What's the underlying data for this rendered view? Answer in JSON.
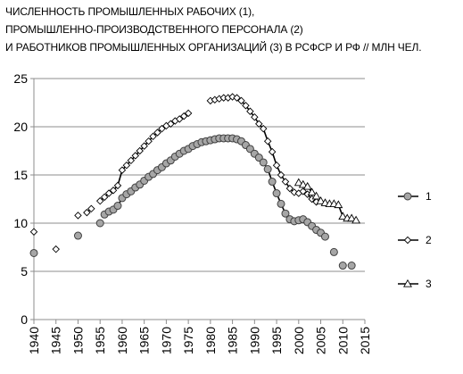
{
  "chart_data": {
    "type": "line",
    "title_lines": [
      "ЧИСЛЕННОСТЬ ПРОМЫШЛЕННЫХ РАБОЧИХ (1),",
      "ПРОМЫШЛЕННО-ПРОИЗВОДСТВЕННОГО ПЕРСОНАЛА (2)",
      "И РАБОТНИКОВ ПРОМЫШЛЕННЫХ ОРГАНИЗАЦИЙ (3) В РСФСР И РФ // МЛН ЧЕЛ."
    ],
    "xlim": [
      1940,
      2015
    ],
    "ylim": [
      0,
      25
    ],
    "x_ticks": [
      "1940",
      "1945",
      "1950",
      "1955",
      "1960",
      "1965",
      "1970",
      "1975",
      "1980",
      "1985",
      "1990",
      "1995",
      "2000",
      "2005",
      "2010",
      "2015"
    ],
    "y_ticks": [
      "0",
      "5",
      "10",
      "15",
      "20",
      "25"
    ],
    "grid": "horizontal",
    "legend_position": "right",
    "series": [
      {
        "name": "1",
        "marker": "circle",
        "color": "#000000",
        "marker_fill": "#a6a6a6",
        "points": [
          [
            1940,
            6.9
          ],
          [
            1950,
            8.7
          ],
          [
            1955,
            10.0
          ],
          [
            1956,
            10.9
          ],
          [
            1957,
            11.2
          ],
          [
            1958,
            11.4
          ],
          [
            1959,
            11.8
          ],
          [
            1960,
            12.6
          ],
          [
            1961,
            13.0
          ],
          [
            1962,
            13.3
          ],
          [
            1963,
            13.7
          ],
          [
            1964,
            14.0
          ],
          [
            1965,
            14.4
          ],
          [
            1966,
            14.8
          ],
          [
            1967,
            15.1
          ],
          [
            1968,
            15.5
          ],
          [
            1969,
            15.8
          ],
          [
            1970,
            16.2
          ],
          [
            1971,
            16.5
          ],
          [
            1972,
            16.9
          ],
          [
            1973,
            17.2
          ],
          [
            1974,
            17.5
          ],
          [
            1975,
            17.7
          ],
          [
            1976,
            18.0
          ],
          [
            1977,
            18.2
          ],
          [
            1978,
            18.4
          ],
          [
            1979,
            18.5
          ],
          [
            1980,
            18.6
          ],
          [
            1981,
            18.7
          ],
          [
            1982,
            18.8
          ],
          [
            1983,
            18.8
          ],
          [
            1984,
            18.8
          ],
          [
            1985,
            18.8
          ],
          [
            1986,
            18.7
          ],
          [
            1987,
            18.5
          ],
          [
            1988,
            18.1
          ],
          [
            1989,
            17.7
          ],
          [
            1990,
            17.2
          ],
          [
            1991,
            16.8
          ],
          [
            1992,
            16.3
          ],
          [
            1993,
            15.6
          ],
          [
            1994,
            14.3
          ],
          [
            1995,
            13.1
          ],
          [
            1996,
            12.0
          ],
          [
            1997,
            11.0
          ],
          [
            1998,
            10.4
          ],
          [
            1999,
            10.2
          ],
          [
            2000,
            10.3
          ],
          [
            2001,
            10.4
          ],
          [
            2002,
            10.1
          ],
          [
            2003,
            9.7
          ],
          [
            2004,
            9.3
          ],
          [
            2005,
            9.0
          ],
          [
            2006,
            8.6
          ],
          [
            2008,
            7.0
          ],
          [
            2010,
            5.6
          ],
          [
            2012,
            5.6
          ]
        ],
        "breaks_after_x": [
          1940,
          1950,
          1955,
          2006,
          2008,
          2010
        ]
      },
      {
        "name": "2",
        "marker": "diamond",
        "color": "#000000",
        "marker_fill": "#ffffff",
        "points": [
          [
            1940,
            9.1
          ],
          [
            1945,
            7.3
          ],
          [
            1950,
            10.8
          ],
          [
            1952,
            11.1
          ],
          [
            1953,
            11.5
          ],
          [
            1955,
            12.3
          ],
          [
            1956,
            12.7
          ],
          [
            1957,
            13.1
          ],
          [
            1958,
            13.4
          ],
          [
            1959,
            13.9
          ],
          [
            1960,
            15.5
          ],
          [
            1961,
            16.0
          ],
          [
            1962,
            16.5
          ],
          [
            1963,
            17.0
          ],
          [
            1964,
            17.5
          ],
          [
            1965,
            18.0
          ],
          [
            1966,
            18.5
          ],
          [
            1967,
            19.0
          ],
          [
            1968,
            19.4
          ],
          [
            1969,
            19.8
          ],
          [
            1970,
            20.1
          ],
          [
            1971,
            20.3
          ],
          [
            1972,
            20.6
          ],
          [
            1973,
            20.8
          ],
          [
            1974,
            21.1
          ],
          [
            1975,
            21.4
          ],
          [
            1980,
            22.7
          ],
          [
            1981,
            22.8
          ],
          [
            1982,
            22.9
          ],
          [
            1983,
            23.0
          ],
          [
            1984,
            23.0
          ],
          [
            1985,
            23.1
          ],
          [
            1986,
            23.0
          ],
          [
            1987,
            22.7
          ],
          [
            1988,
            22.2
          ],
          [
            1989,
            21.6
          ],
          [
            1990,
            21.0
          ],
          [
            1991,
            20.3
          ],
          [
            1992,
            19.8
          ],
          [
            1993,
            18.5
          ],
          [
            1994,
            17.4
          ],
          [
            1995,
            16.0
          ],
          [
            1996,
            15.0
          ],
          [
            1997,
            14.3
          ],
          [
            1998,
            13.6
          ],
          [
            1999,
            13.2
          ],
          [
            2000,
            13.1
          ],
          [
            2001,
            13.3
          ],
          [
            2002,
            13.0
          ],
          [
            2003,
            12.5
          ],
          [
            2004,
            12.2
          ]
        ],
        "breaks_after_x": [
          1940,
          1945,
          1950,
          1953,
          1975
        ]
      },
      {
        "name": "3",
        "marker": "triangle",
        "color": "#000000",
        "marker_fill": "#ffffff",
        "points": [
          [
            2000,
            14.2
          ],
          [
            2001,
            14.0
          ],
          [
            2002,
            13.8
          ],
          [
            2003,
            13.2
          ],
          [
            2004,
            12.8
          ],
          [
            2005,
            12.3
          ],
          [
            2006,
            12.1
          ],
          [
            2007,
            12.0
          ],
          [
            2008,
            12.0
          ],
          [
            2009,
            11.9
          ],
          [
            2010,
            10.7
          ],
          [
            2011,
            10.5
          ],
          [
            2012,
            10.5
          ],
          [
            2013,
            10.3
          ]
        ],
        "breaks_after_x": []
      }
    ]
  }
}
